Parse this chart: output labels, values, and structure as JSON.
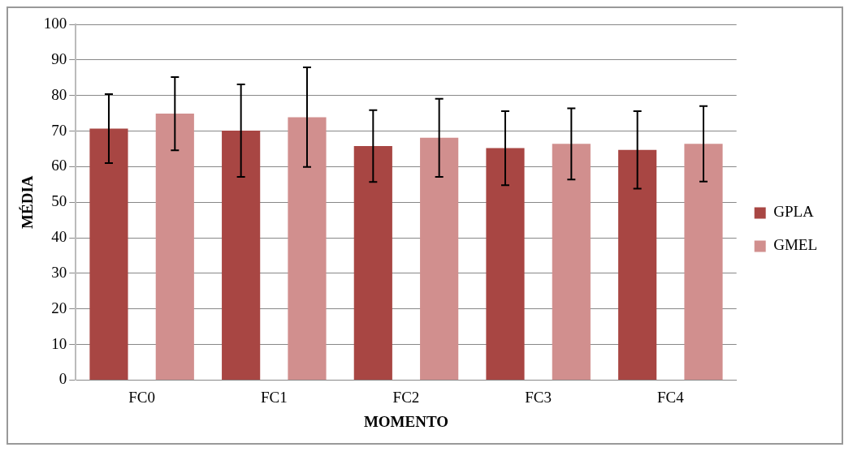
{
  "chart_data": {
    "type": "bar",
    "xlabel": "MOMENTO",
    "ylabel": "MÉDIA",
    "categories": [
      "FC0",
      "FC1",
      "FC2",
      "FC3",
      "FC4"
    ],
    "series": [
      {
        "name": "GPLA",
        "color": "#a84643",
        "values": [
          70.7,
          70.1,
          65.8,
          65.2,
          64.7
        ],
        "errors": [
          9.7,
          13,
          10.1,
          10.4,
          10.9
        ]
      },
      {
        "name": "GMEL",
        "color": "#d18f8e",
        "values": [
          74.9,
          73.9,
          68.1,
          66.4,
          66.4
        ],
        "errors": [
          10.3,
          14,
          11,
          10,
          10.6
        ]
      }
    ],
    "ylim": [
      0,
      100
    ],
    "yticks": [
      0,
      10,
      20,
      30,
      40,
      50,
      60,
      70,
      80,
      90,
      100
    ],
    "grid": "y",
    "legend": "right"
  }
}
